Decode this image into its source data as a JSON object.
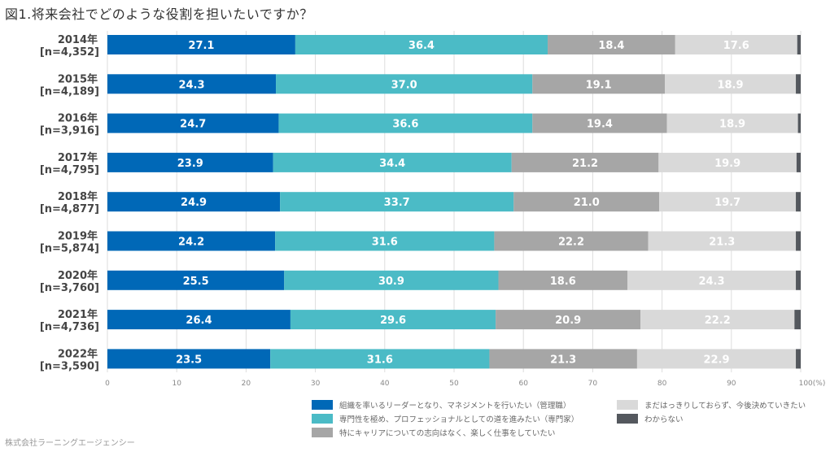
{
  "title": "図1.将来会社でどのような役割を担いたいですか？",
  "credit": "株式会社ラーニングエージェンシー",
  "chart_data": {
    "type": "bar",
    "orientation": "horizontal",
    "stacked": true,
    "title": "図1.将来会社でどのような役割を担いたいですか？",
    "xlabel": "",
    "ylabel": "",
    "xlim": [
      0,
      100
    ],
    "x_ticks": [
      "0",
      "10",
      "20",
      "30",
      "40",
      "50",
      "60",
      "70",
      "80",
      "90",
      "100(%)"
    ],
    "grid": true,
    "legend_position": "bottom-right",
    "categories": [
      {
        "year": "2014年",
        "n": "[n=4,352]"
      },
      {
        "year": "2015年",
        "n": "[n=4,189]"
      },
      {
        "year": "2016年",
        "n": "[n=3,916]"
      },
      {
        "year": "2017年",
        "n": "[n=4,795]"
      },
      {
        "year": "2018年",
        "n": "[n=4,877]"
      },
      {
        "year": "2019年",
        "n": "[n=5,874]"
      },
      {
        "year": "2020年",
        "n": "[n=3,760]"
      },
      {
        "year": "2021年",
        "n": "[n=4,736]"
      },
      {
        "year": "2022年",
        "n": "[n=3,590]"
      }
    ],
    "series": [
      {
        "name": "組織を率いるリーダーとなり、マネジメントを行いたい（管理職）",
        "color": "#0068b7",
        "label_color": "#ffffff",
        "show_labels": true,
        "values": [
          27.1,
          24.3,
          24.7,
          23.9,
          24.9,
          24.2,
          25.5,
          26.4,
          23.5
        ]
      },
      {
        "name": "専門性を極め、プロフェッショナルとしての道を進みたい（専門家）",
        "color": "#4bbbc6",
        "label_color": "#ffffff",
        "show_labels": true,
        "values": [
          36.4,
          37.0,
          36.6,
          34.4,
          33.7,
          31.6,
          30.9,
          29.6,
          31.6
        ]
      },
      {
        "name": "特にキャリアについての志向はなく、楽しく仕事をしていたい",
        "color": "#a6a6a6",
        "label_color": "#ffffff",
        "show_labels": true,
        "values": [
          18.4,
          19.1,
          19.4,
          21.2,
          21.0,
          22.2,
          18.6,
          20.9,
          21.3
        ]
      },
      {
        "name": "まだはっきりしておらず、今後決めていきたい",
        "color": "#d9d9d9",
        "label_color": "#ffffff",
        "show_labels": true,
        "values": [
          17.6,
          18.9,
          18.9,
          19.9,
          19.7,
          21.3,
          24.3,
          22.2,
          22.9
        ]
      },
      {
        "name": "わからない",
        "color": "#54585e",
        "label_color": "#ffffff",
        "show_labels": false,
        "values": [
          0.5,
          0.7,
          0.4,
          0.6,
          0.7,
          0.7,
          0.7,
          0.9,
          0.7
        ]
      }
    ]
  }
}
